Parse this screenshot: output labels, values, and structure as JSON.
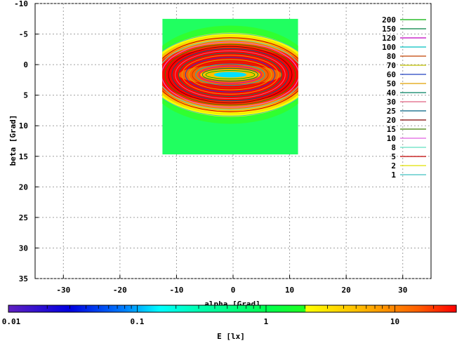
{
  "chart_data": {
    "type": "heatmap",
    "xlabel": "alpha [Grad]",
    "ylabel": "beta [Grad]",
    "xlim": [
      -35,
      35
    ],
    "ylim": [
      35,
      -10
    ],
    "y_axis_inverted": true,
    "x_ticks": [
      "-30",
      "-20",
      "-10",
      "0",
      "10",
      "20",
      "30"
    ],
    "y_ticks": [
      "-10",
      "-5",
      "0",
      "5",
      "10",
      "15",
      "20",
      "25",
      "30",
      "35"
    ],
    "grid": true,
    "data_extent": {
      "alpha": [
        -12.5,
        11.5
      ],
      "beta": [
        -7.5,
        14.7
      ]
    },
    "peak": {
      "alpha": -0.5,
      "beta": 0.5
    },
    "legend_position": "top-right",
    "contour_levels": [
      {
        "label": "200",
        "color": "#00b000"
      },
      {
        "label": "150",
        "color": "#008040"
      },
      {
        "label": "120",
        "color": "#c000c0"
      },
      {
        "label": "100",
        "color": "#00c0c0"
      },
      {
        "label": "80",
        "color": "#c04000"
      },
      {
        "label": "70",
        "color": "#c0c000"
      },
      {
        "label": "60",
        "color": "#2040c0"
      },
      {
        "label": "50",
        "color": "#e0a000"
      },
      {
        "label": "40",
        "color": "#008060"
      },
      {
        "label": "30",
        "color": "#e06080"
      },
      {
        "label": "25",
        "color": "#006080"
      },
      {
        "label": "20",
        "color": "#800000"
      },
      {
        "label": "15",
        "color": "#408000"
      },
      {
        "label": "10",
        "color": "#e060e0"
      },
      {
        "label": "8",
        "color": "#60e0c0"
      },
      {
        "label": "5",
        "color": "#c00000"
      },
      {
        "label": "2",
        "color": "#e0e000"
      },
      {
        "label": "1",
        "color": "#40c0c0"
      }
    ],
    "colorbar": {
      "label": "E [lx]",
      "scale": "log",
      "range": [
        0.01,
        30
      ],
      "ticks": [
        "0.01",
        "0.1",
        "1",
        "10"
      ],
      "stops": [
        {
          "value": 0.01,
          "color": "#6020c0"
        },
        {
          "value": 0.03,
          "color": "#0000e0"
        },
        {
          "value": 0.08,
          "color": "#0080ff"
        },
        {
          "value": 0.15,
          "color": "#00ffff"
        },
        {
          "value": 0.3,
          "color": "#00ffb0"
        },
        {
          "value": 1.0,
          "color": "#00ff50"
        },
        {
          "value": 2.0,
          "color": "#20ff20"
        },
        {
          "value": 2.05,
          "color": "#ffff00"
        },
        {
          "value": 5.0,
          "color": "#ffc000"
        },
        {
          "value": 15,
          "color": "#ff6000"
        },
        {
          "value": 30,
          "color": "#ff0000"
        }
      ]
    }
  }
}
